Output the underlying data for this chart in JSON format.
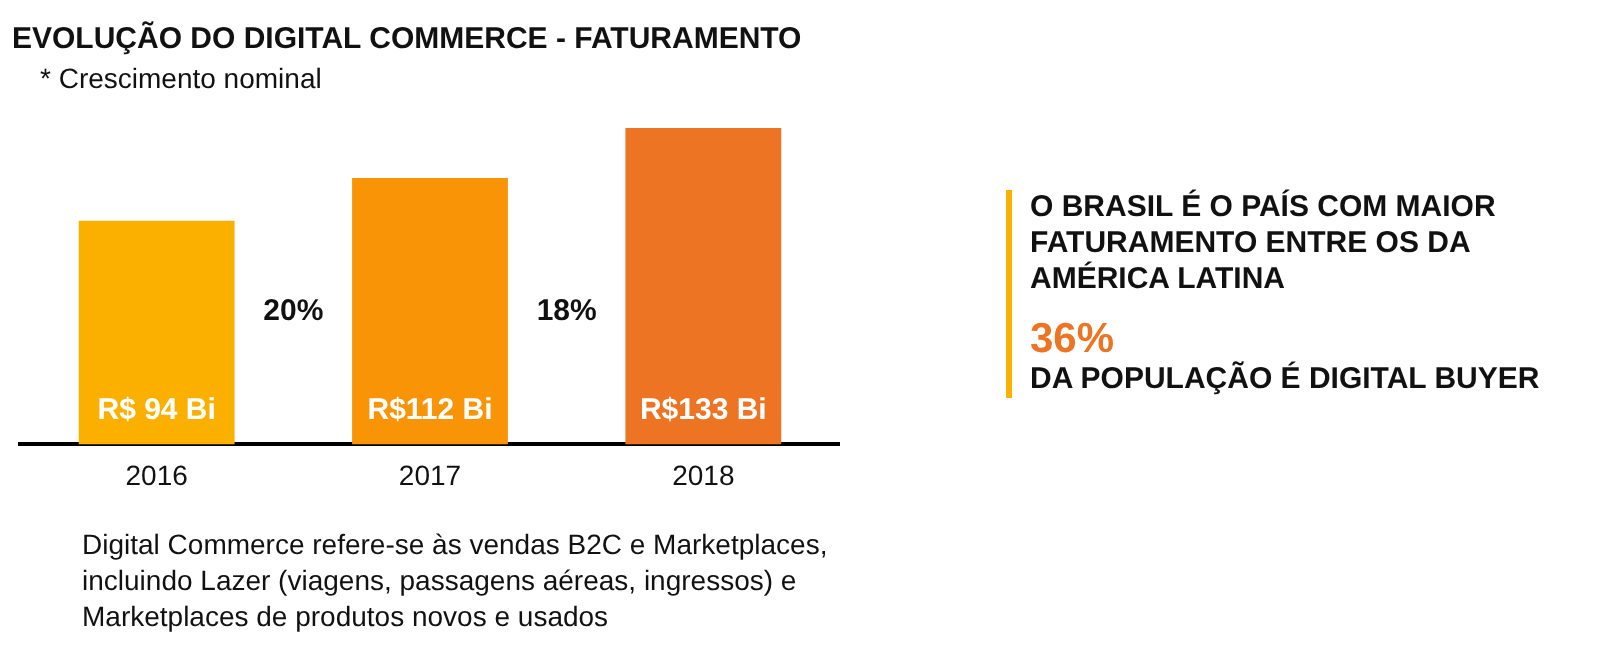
{
  "chart_data": [
    {
      "type": "bar",
      "title": "EVOLUÇÃO DO DIGITAL COMMERCE - FATURAMENTO",
      "subtitle": "* Crescimento nominal",
      "categories": [
        "2016",
        "2017",
        "2018"
      ],
      "values": [
        94,
        112,
        133
      ],
      "colors": [
        "#fbb000",
        "#f89406",
        "#ec7423"
      ],
      "value_labels": [
        "R$ 94 Bi",
        "R$112 Bi",
        "R$133 Bi"
      ],
      "annotations": [
        "20%",
        "18%",
        "Digital Commerce refere-se às vendas B2C e Marketplaces,\nincluindo Lazer (viagens, passagens aéreas, ingressos) e\nMarketplaces de produtos novos e usados"
      ],
      "legend": false,
      "grid": false
    },
    {
      "type": "other",
      "annotations": [
        "O BRASIL É O PAÍS COM MAIOR FATURAMENTO ENTRE OS DA AMÉRICA LATINA",
        "36%",
        "DA POPULAÇÃO É DIGITAL BUYER"
      ]
    }
  ]
}
